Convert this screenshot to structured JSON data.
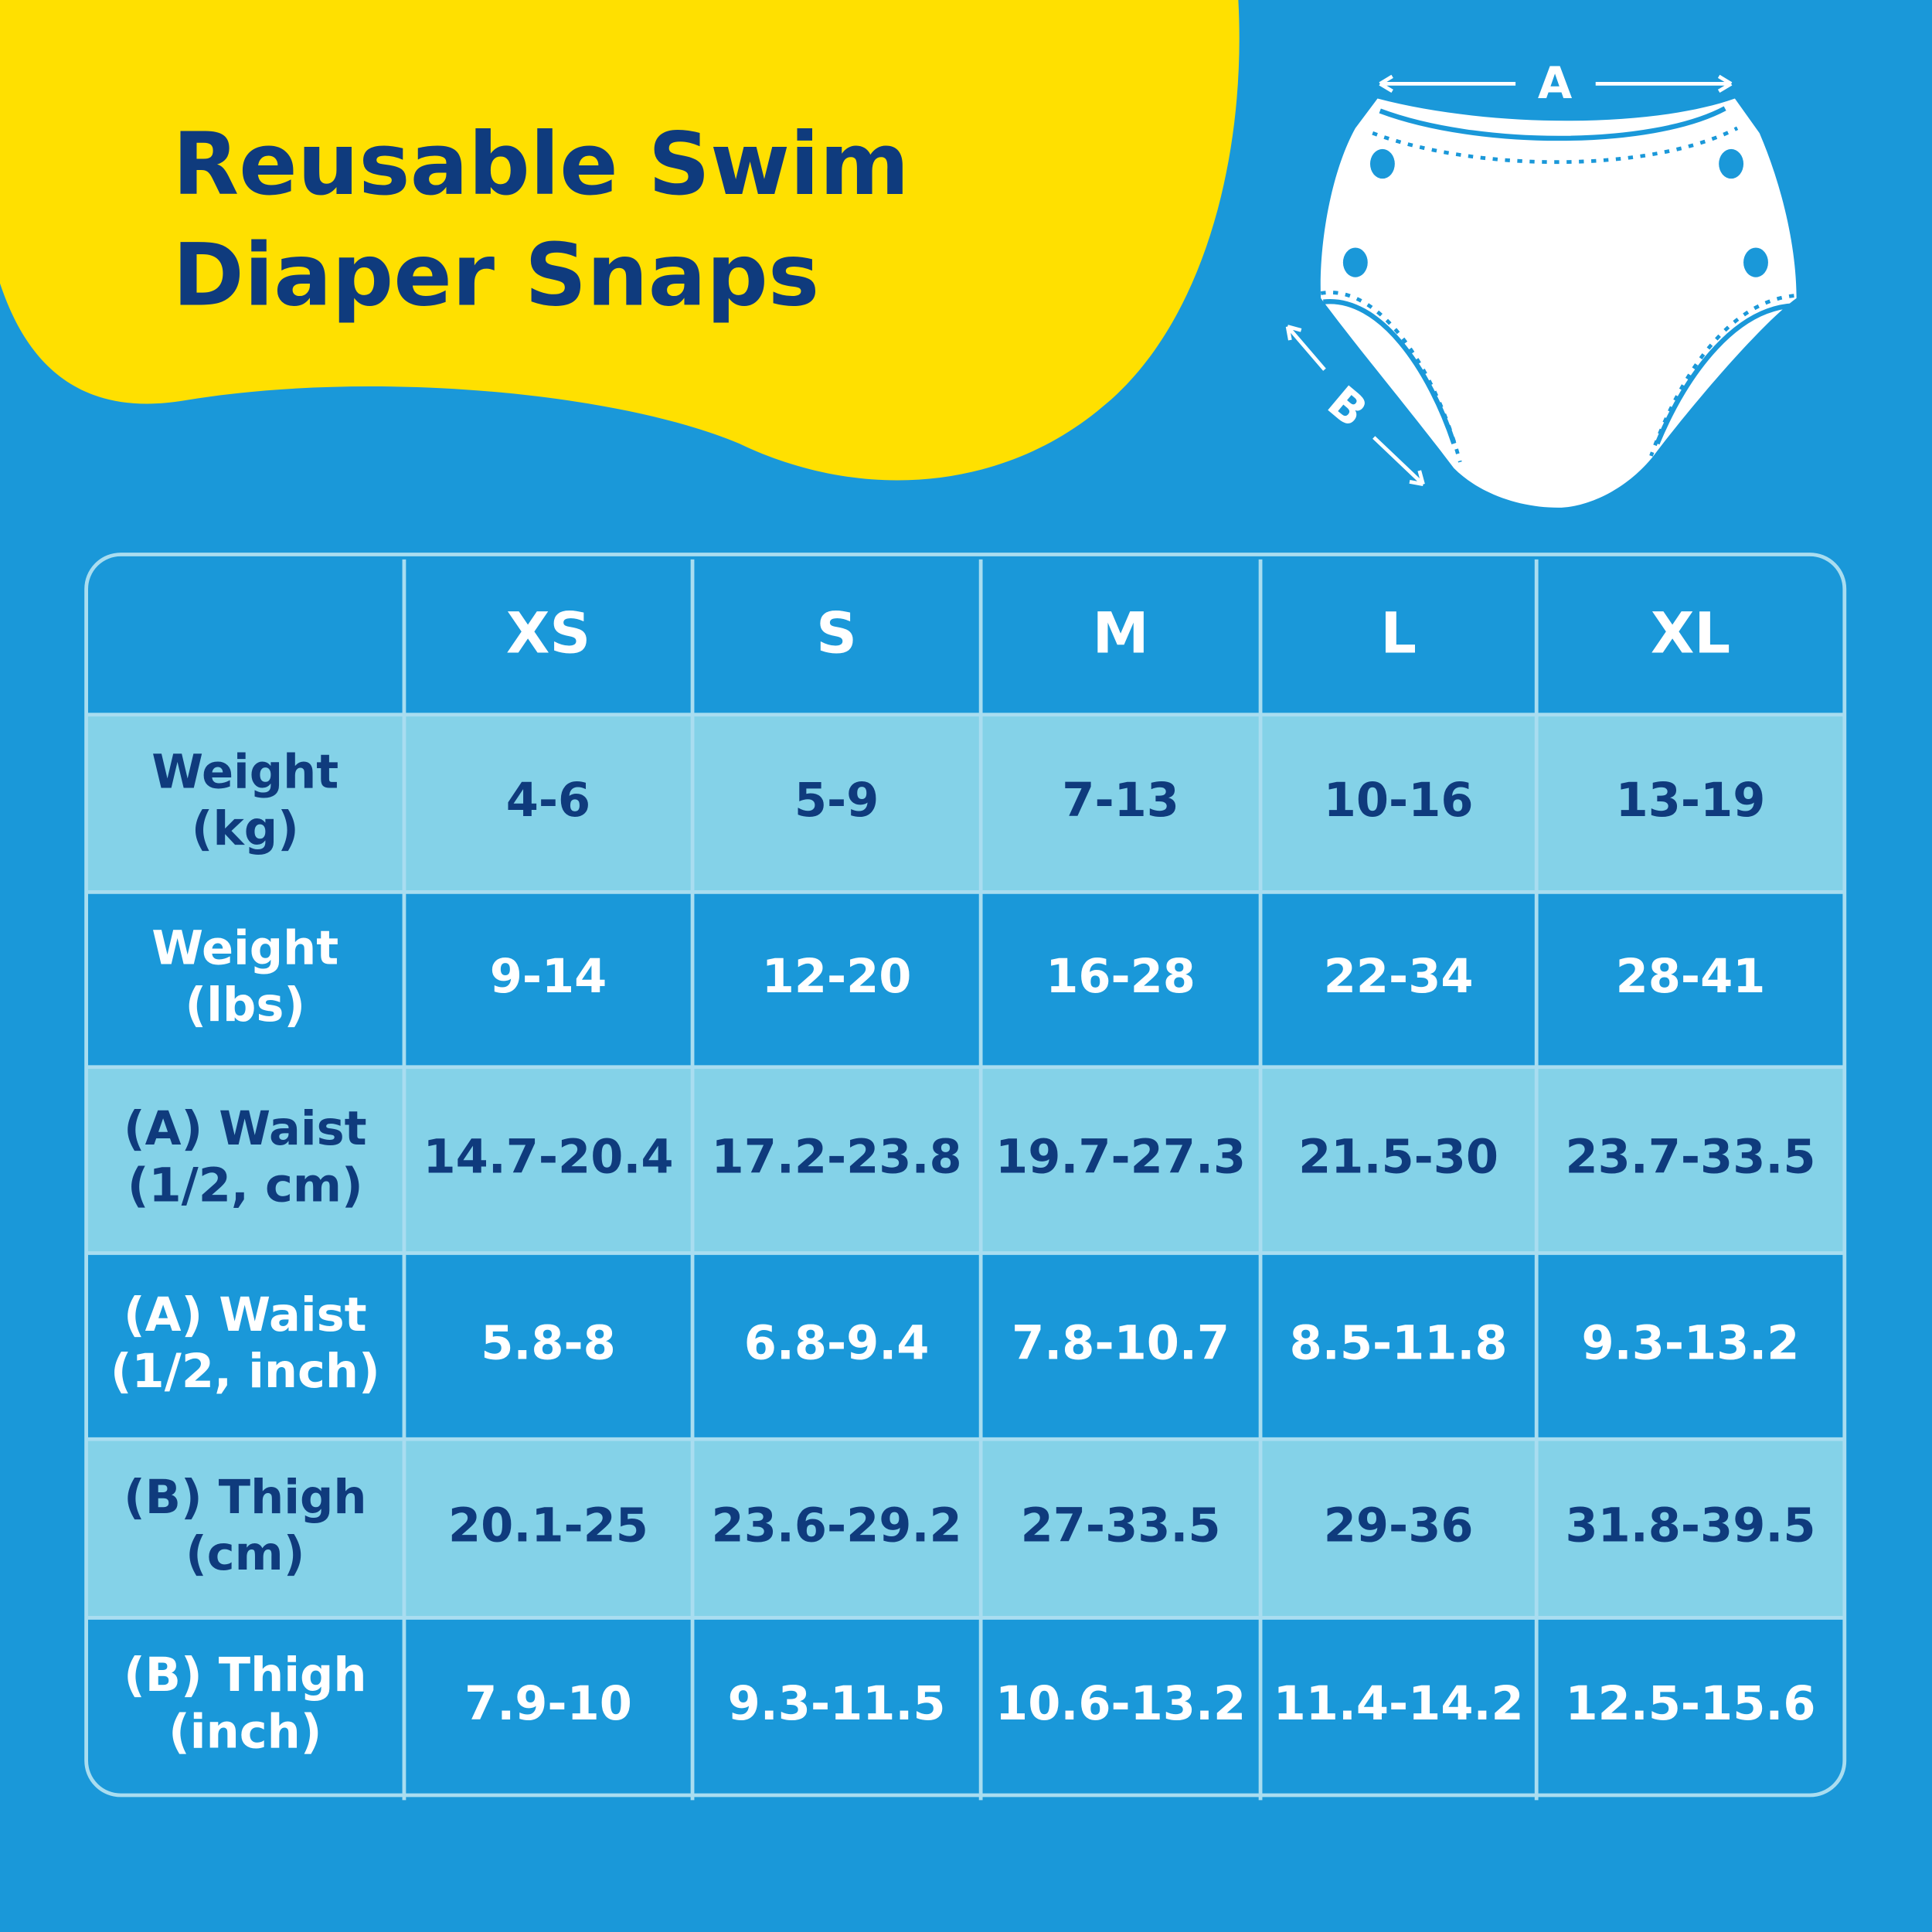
{
  "header": {
    "title": [
      "Reusable Swim",
      "Diaper Snaps"
    ]
  },
  "diagram": {
    "label_a": "A",
    "label_b": "B"
  },
  "table": {
    "columns": [
      "XS",
      "S",
      "M",
      "L",
      "XL"
    ],
    "rows": [
      {
        "label": [
          "Weight",
          "(kg)"
        ],
        "cells": [
          "4-6",
          "5-9",
          "7-13",
          "10-16",
          "13-19"
        ]
      },
      {
        "label": [
          "Weight",
          "(lbs)"
        ],
        "cells": [
          "9-14",
          "12-20",
          "16-28",
          "22-34",
          "28-41"
        ]
      },
      {
        "label": [
          "(A) Waist",
          "(1/2, cm)"
        ],
        "cells": [
          "14.7-20.4",
          "17.2-23.8",
          "19.7-27.3",
          "21.5-30",
          "23.7-33.5"
        ]
      },
      {
        "label": [
          "(A) Waist",
          "(1/2, inch)"
        ],
        "cells": [
          "5.8-8",
          "6.8-9.4",
          "7.8-10.7",
          "8.5-11.8",
          "9.3-13.2"
        ]
      },
      {
        "label": [
          "(B) Thigh",
          "(cm)"
        ],
        "cells": [
          "20.1-25",
          "23.6-29.2",
          "27-33.5",
          "29-36",
          "31.8-39.5"
        ]
      },
      {
        "label": [
          "(B) Thigh",
          "(inch)"
        ],
        "cells": [
          "7.9-10",
          "9.3-11.5",
          "10.6-13.2",
          "11.4-14.2",
          "12.5-15.6"
        ]
      }
    ]
  }
}
